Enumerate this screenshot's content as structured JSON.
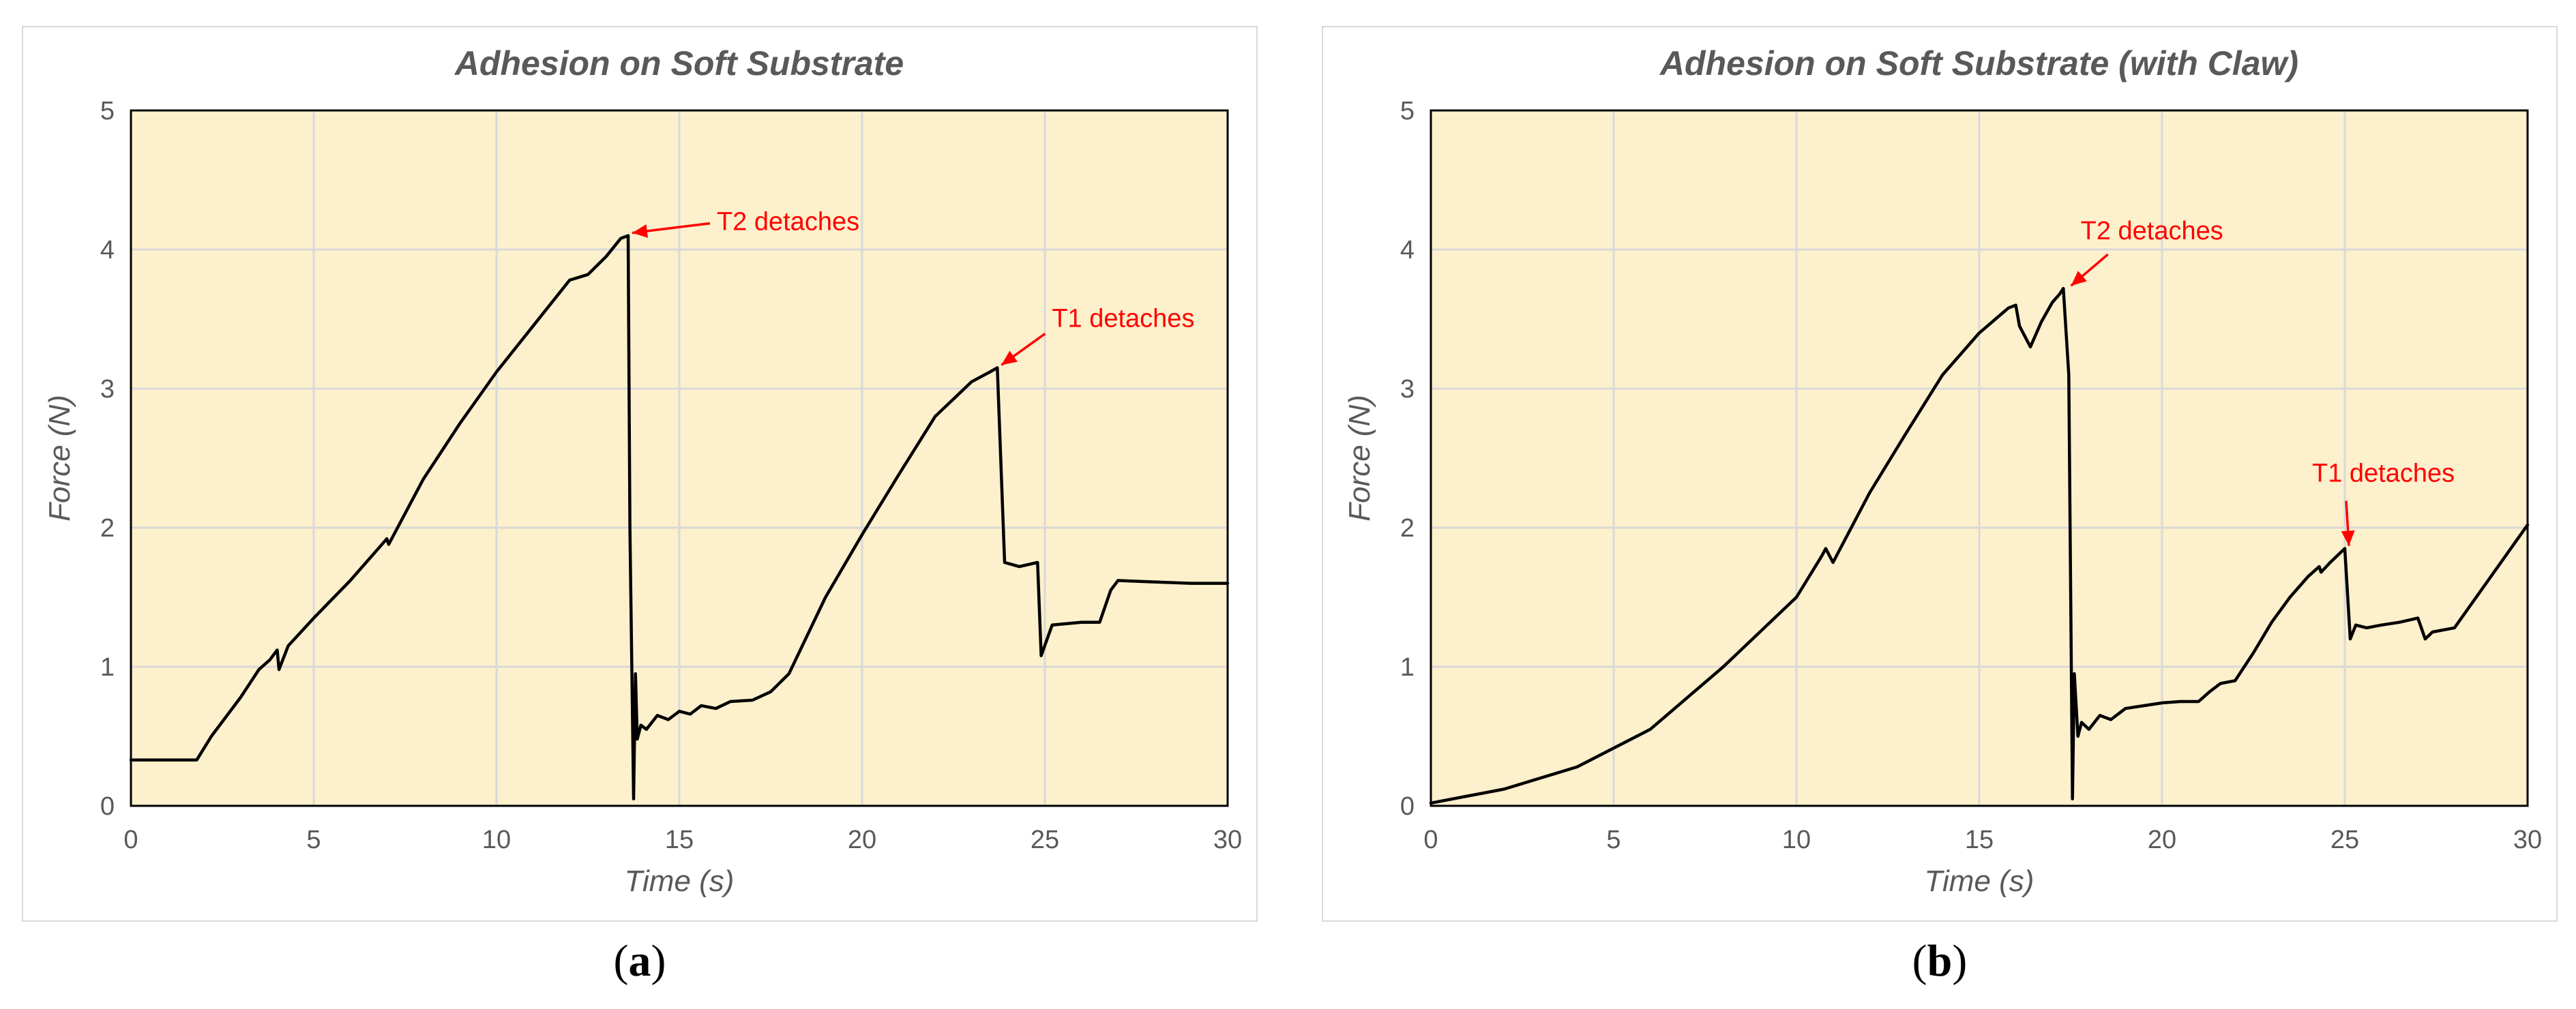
{
  "chart_data": [
    {
      "type": "line",
      "title": "Adhesion on Soft Substrate",
      "xlabel": "Time (s)",
      "ylabel": "Force (N)",
      "xlim": [
        0,
        30
      ],
      "ylim": [
        0,
        5
      ],
      "xticks": [
        "0",
        "5",
        "10",
        "15",
        "20",
        "25",
        "30"
      ],
      "yticks": [
        "0",
        "1",
        "2",
        "3",
        "4",
        "5"
      ],
      "grid": true,
      "legend": "none",
      "colors": {
        "plot_bg": "#fdf0cc",
        "grid": "#d9d9d9",
        "line": "#000000",
        "annotation": "#ff0000"
      },
      "series": [
        {
          "x": [
            0,
            1.8,
            2.2,
            3.0,
            3.5,
            3.8,
            4.0,
            4.05,
            4.3,
            5.0,
            6.0,
            7.0,
            7.05,
            8.0,
            9.0,
            10.0,
            11.0,
            12.0,
            12.5,
            13.0,
            13.4,
            13.6,
            13.65,
            13.75,
            13.8,
            13.85,
            13.95,
            14.1,
            14.4,
            14.7,
            15.0,
            15.3,
            15.6,
            16.0,
            16.4,
            17.0,
            17.5,
            18.0,
            19.0,
            20.0,
            21.0,
            22.0,
            23.0,
            23.5,
            23.7,
            23.9,
            24.3,
            24.8,
            24.9,
            25.2,
            26.0,
            26.5,
            26.8,
            27.0,
            28.0,
            29.0,
            30.0
          ],
          "y": [
            0.33,
            0.33,
            0.5,
            0.78,
            0.98,
            1.05,
            1.12,
            0.98,
            1.15,
            1.35,
            1.62,
            1.92,
            1.88,
            2.35,
            2.75,
            3.12,
            3.45,
            3.78,
            3.82,
            3.95,
            4.08,
            4.1,
            2.0,
            0.05,
            0.95,
            0.48,
            0.58,
            0.55,
            0.65,
            0.62,
            0.68,
            0.66,
            0.72,
            0.7,
            0.75,
            0.76,
            0.82,
            0.95,
            1.5,
            1.95,
            2.38,
            2.8,
            3.05,
            3.12,
            3.15,
            1.75,
            1.72,
            1.75,
            1.08,
            1.3,
            1.32,
            1.32,
            1.55,
            1.62,
            1.61,
            1.6,
            1.6
          ]
        }
      ],
      "annotations": [
        {
          "text": "T2 detaches",
          "x": 13.6,
          "y": 4.1
        },
        {
          "text": "T1 detaches",
          "x": 23.7,
          "y": 3.15
        }
      ]
    },
    {
      "type": "line",
      "title": "Adhesion on Soft Substrate (with Claw)",
      "xlabel": "Time (s)",
      "ylabel": "Force (N)",
      "xlim": [
        0,
        30
      ],
      "ylim": [
        0,
        5
      ],
      "xticks": [
        "0",
        "5",
        "10",
        "15",
        "20",
        "25",
        "30"
      ],
      "yticks": [
        "0",
        "1",
        "2",
        "3",
        "4",
        "5"
      ],
      "grid": true,
      "legend": "none",
      "colors": {
        "plot_bg": "#fdf0cc",
        "grid": "#d9d9d9",
        "line": "#000000",
        "annotation": "#ff0000"
      },
      "series": [
        {
          "x": [
            0,
            2,
            4,
            6,
            8,
            10,
            10.7,
            10.8,
            11.0,
            12.0,
            13.0,
            14.0,
            15.0,
            15.8,
            16.0,
            16.1,
            16.4,
            16.7,
            17.0,
            17.2,
            17.3,
            17.45,
            17.55,
            17.6,
            17.7,
            17.8,
            18.0,
            18.3,
            18.6,
            19.0,
            19.5,
            20.0,
            20.5,
            21.0,
            21.3,
            21.6,
            22.0,
            22.5,
            23.0,
            23.5,
            24.0,
            24.3,
            24.35,
            24.6,
            25.0,
            25.15,
            25.3,
            25.6,
            26.0,
            26.5,
            27.0,
            27.2,
            27.4,
            28.0,
            29.0,
            30.0
          ],
          "y": [
            0.02,
            0.12,
            0.28,
            0.55,
            1.0,
            1.5,
            1.8,
            1.85,
            1.75,
            2.25,
            2.68,
            3.1,
            3.4,
            3.58,
            3.6,
            3.45,
            3.3,
            3.48,
            3.62,
            3.68,
            3.72,
            3.1,
            0.05,
            0.95,
            0.5,
            0.6,
            0.55,
            0.65,
            0.62,
            0.7,
            0.72,
            0.74,
            0.75,
            0.75,
            0.82,
            0.88,
            0.9,
            1.1,
            1.32,
            1.5,
            1.65,
            1.72,
            1.68,
            1.75,
            1.85,
            1.2,
            1.3,
            1.28,
            1.3,
            1.32,
            1.35,
            1.2,
            1.25,
            1.28,
            1.65,
            2.02
          ]
        }
      ],
      "annotations": [
        {
          "text": "T2 detaches",
          "x": 17.4,
          "y": 3.72
        },
        {
          "text": "T1 detaches",
          "x": 25.0,
          "y": 1.85
        }
      ]
    }
  ],
  "captions": [
    {
      "open": "(",
      "letter": "a",
      "close": ")"
    },
    {
      "open": "(",
      "letter": "b",
      "close": ")"
    }
  ]
}
